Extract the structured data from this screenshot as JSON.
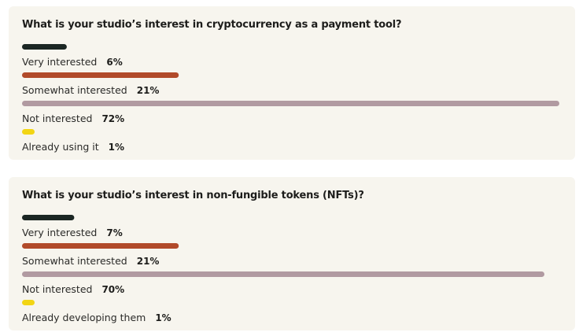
{
  "colors": {
    "very_interested": "#1b2623",
    "somewhat_interested": "#b14a2a",
    "not_interested": "#b19aa1",
    "already": "#f2d514",
    "card_background": "#f7f5ee",
    "text": "#1d1d1b"
  },
  "chart_data": [
    {
      "type": "bar",
      "orientation": "horizontal",
      "title": "What is your studio’s interest in cryptocurrency as a payment tool?",
      "categories": [
        "Very interested",
        "Somewhat interested",
        "Not interested",
        "Already using it"
      ],
      "values": [
        6,
        21,
        72,
        1
      ],
      "value_labels": [
        "6%",
        "21%",
        "72%",
        "1%"
      ],
      "unit": "%",
      "xlim": [
        0,
        72
      ],
      "grid": false,
      "legend": "none"
    },
    {
      "type": "bar",
      "orientation": "horizontal",
      "title": "What is your studio’s interest in non-fungible tokens (NFTs)?",
      "categories": [
        "Very interested",
        "Somewhat interested",
        "Not interested",
        "Already developing them"
      ],
      "values": [
        7,
        21,
        70,
        1
      ],
      "value_labels": [
        "7%",
        "21%",
        "70%",
        "1%"
      ],
      "unit": "%",
      "xlim": [
        0,
        72
      ],
      "grid": false,
      "legend": "none"
    }
  ]
}
